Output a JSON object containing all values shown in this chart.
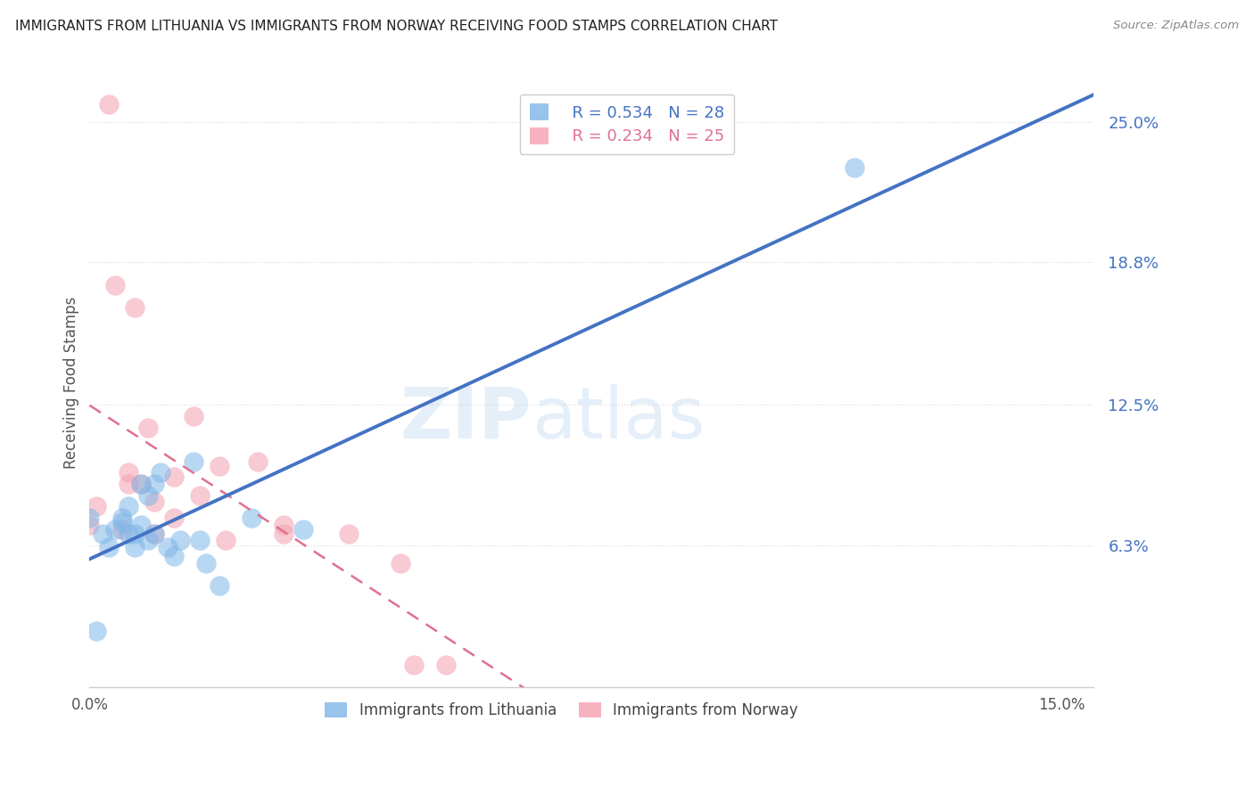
{
  "title": "IMMIGRANTS FROM LITHUANIA VS IMMIGRANTS FROM NORWAY RECEIVING FOOD STAMPS CORRELATION CHART",
  "source": "Source: ZipAtlas.com",
  "ylabel": "Receiving Food Stamps",
  "ylim": [
    0,
    0.27
  ],
  "xlim": [
    0,
    0.155
  ],
  "ytick_labels": [
    "6.3%",
    "12.5%",
    "18.8%",
    "25.0%"
  ],
  "ytick_values": [
    0.063,
    0.125,
    0.188,
    0.25
  ],
  "legend_r_lithuania": "R = 0.534",
  "legend_n_lithuania": "N = 28",
  "legend_r_norway": "R = 0.234",
  "legend_n_norway": "N = 25",
  "legend_label_lithuania": "Immigrants from Lithuania",
  "legend_label_norway": "Immigrants from Norway",
  "color_lithuania": "#7EB6E8",
  "color_norway": "#F4A0B0",
  "color_line_lithuania": "#4472C4",
  "color_line_norway": "#E07090",
  "watermark_zip": "ZIP",
  "watermark_atlas": "atlas",
  "background_color": "#FFFFFF",
  "grid_color": "#DDDDDD",
  "lithuania_x": [
    0.0,
    0.001,
    0.002,
    0.003,
    0.004,
    0.005,
    0.005,
    0.006,
    0.006,
    0.007,
    0.007,
    0.008,
    0.008,
    0.009,
    0.009,
    0.01,
    0.01,
    0.011,
    0.012,
    0.013,
    0.014,
    0.016,
    0.017,
    0.018,
    0.02,
    0.025,
    0.033,
    0.118
  ],
  "lithuania_y": [
    0.075,
    0.025,
    0.068,
    0.062,
    0.07,
    0.075,
    0.073,
    0.08,
    0.068,
    0.062,
    0.068,
    0.072,
    0.09,
    0.065,
    0.085,
    0.068,
    0.09,
    0.095,
    0.062,
    0.058,
    0.065,
    0.1,
    0.065,
    0.055,
    0.045,
    0.075,
    0.07,
    0.23
  ],
  "norway_x": [
    0.0,
    0.001,
    0.003,
    0.004,
    0.005,
    0.006,
    0.006,
    0.007,
    0.008,
    0.009,
    0.01,
    0.01,
    0.013,
    0.013,
    0.016,
    0.017,
    0.02,
    0.021,
    0.026,
    0.03,
    0.03,
    0.04,
    0.048,
    0.05,
    0.055
  ],
  "norway_y": [
    0.072,
    0.08,
    0.258,
    0.178,
    0.07,
    0.09,
    0.095,
    0.168,
    0.09,
    0.115,
    0.082,
    0.068,
    0.093,
    0.075,
    0.12,
    0.085,
    0.098,
    0.065,
    0.1,
    0.068,
    0.072,
    0.068,
    0.055,
    0.01,
    0.01
  ]
}
